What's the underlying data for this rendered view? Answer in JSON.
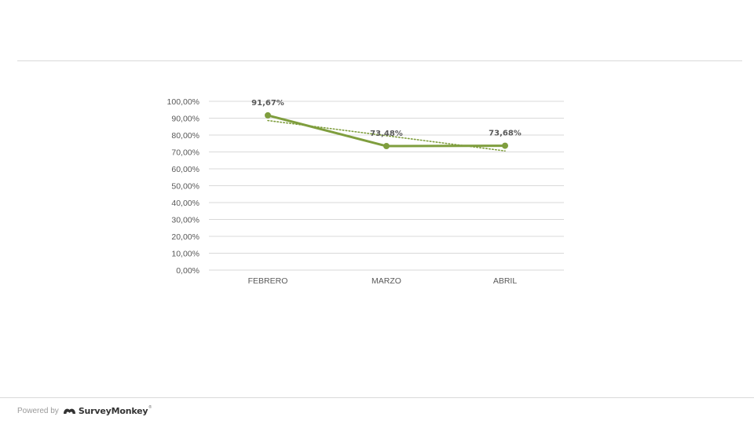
{
  "chart_data": {
    "type": "line",
    "title": "",
    "xlabel": "",
    "ylabel": "",
    "categories": [
      "FEBRERO",
      "MARZO",
      "ABRIL"
    ],
    "series": [
      {
        "values": [
          91.67,
          73.48,
          73.68
        ],
        "data_labels": [
          "91,67%",
          "73,48%",
          "73,68%"
        ],
        "color": "#7f9e3e"
      }
    ],
    "trendline": {
      "style": "dotted",
      "color": "#7f9e3e",
      "values": [
        88.6,
        79.6,
        70.6
      ]
    },
    "ylim": [
      0,
      100
    ],
    "y_ticks": [
      0,
      10,
      20,
      30,
      40,
      50,
      60,
      70,
      80,
      90,
      100
    ],
    "y_tick_labels": [
      "0,00%",
      "10,00%",
      "20,00%",
      "30,00%",
      "40,00%",
      "50,00%",
      "60,00%",
      "70,00%",
      "80,00%",
      "90,00%",
      "100,00%"
    ],
    "grid": true,
    "legend": "none"
  },
  "footer": {
    "powered_by": "Powered by",
    "brand": "SurveyMonkey",
    "brand_mark": "®",
    "logo_icon": "surveymonkey-logo-icon"
  }
}
